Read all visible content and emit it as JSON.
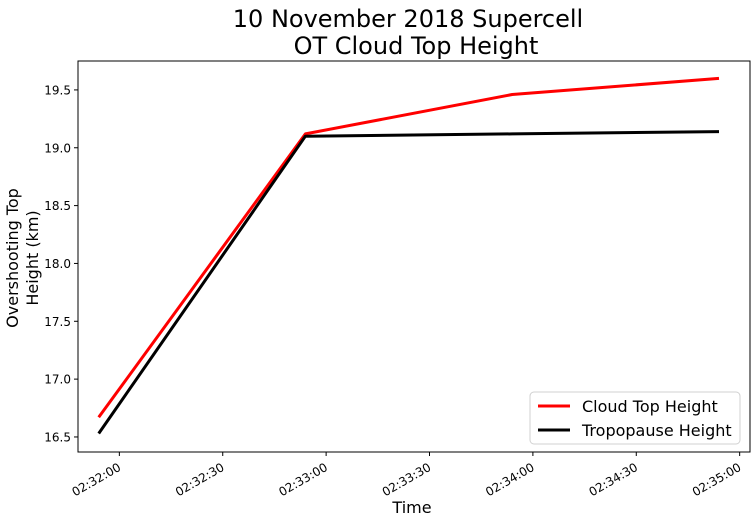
{
  "chart_data": {
    "type": "line",
    "title": "10 November 2018 Supercell\nOT Cloud Top Height",
    "xlabel": "Time",
    "ylabel": "Overshooting Top\nHeight (km)",
    "x": [
      "02:31:54",
      "02:32:54",
      "02:33:54",
      "02:34:54"
    ],
    "xlim": [
      "02:31:48",
      "02:35:03"
    ],
    "xticks": [
      "02:32:00",
      "02:32:30",
      "02:33:00",
      "02:33:30",
      "02:34:00",
      "02:34:30",
      "02:35:00"
    ],
    "ylim": [
      16.37,
      19.75
    ],
    "yticks": [
      "16.5",
      "17.0",
      "17.5",
      "18.0",
      "18.5",
      "19.0",
      "19.5"
    ],
    "series": [
      {
        "name": "Cloud Top Height",
        "color": "#ff0000",
        "values": [
          16.67,
          19.12,
          19.46,
          19.6
        ]
      },
      {
        "name": "Tropopause Height",
        "color": "#000000",
        "values": [
          16.53,
          19.1,
          19.12,
          19.14
        ]
      }
    ],
    "legend_position": "lower-right",
    "grid": false
  }
}
